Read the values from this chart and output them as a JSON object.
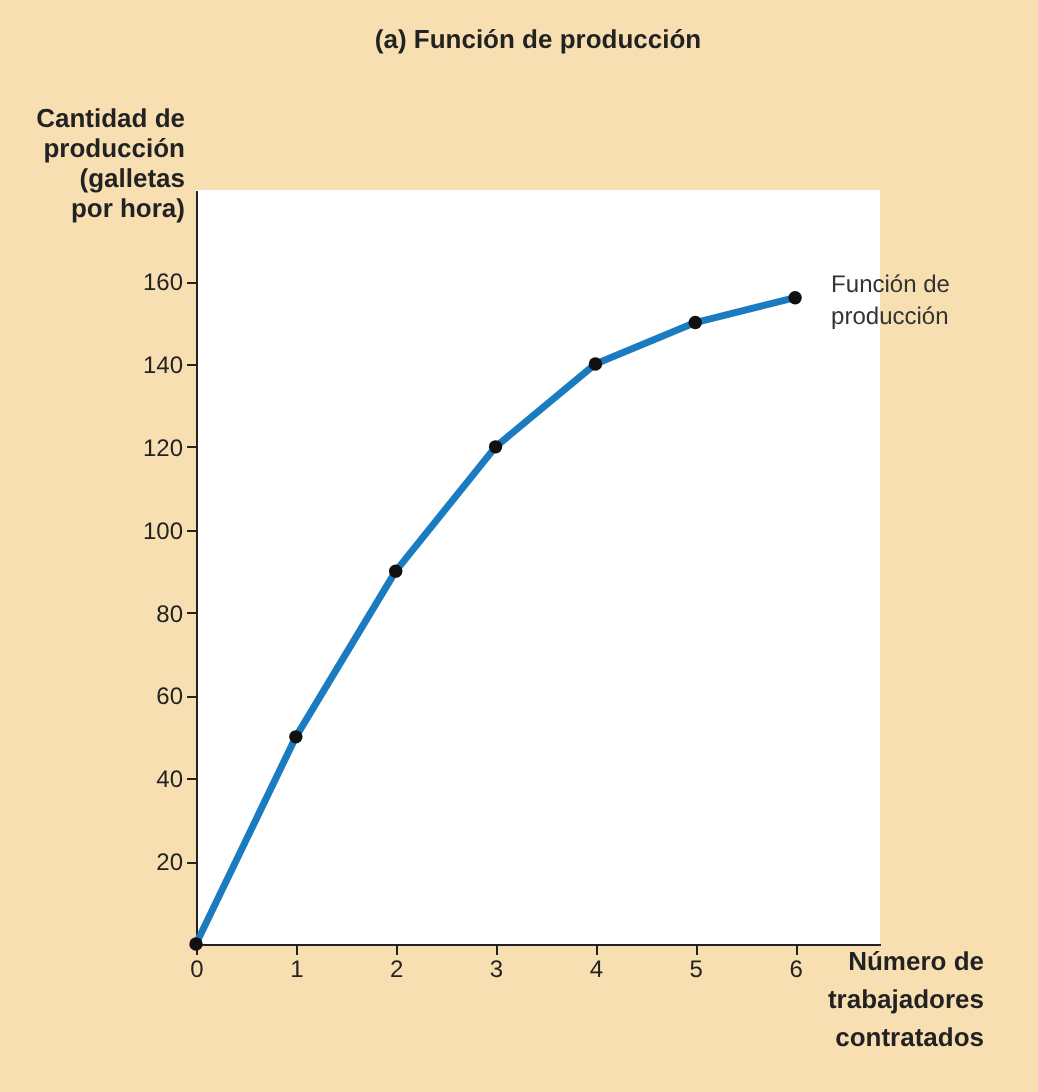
{
  "chart_data": {
    "type": "line",
    "title": "(a) Función de producción",
    "xlabel": "Número de trabajadores contratados",
    "ylabel": "Cantidad de producción (galletas por hora)",
    "x": [
      0,
      1,
      2,
      3,
      4,
      5,
      6
    ],
    "series": [
      {
        "name": "Función de producción",
        "color": "#1b7bc0",
        "values": [
          0,
          50,
          90,
          120,
          140,
          150,
          156
        ]
      }
    ],
    "xlim": [
      0,
      6.85
    ],
    "xticks": [
      0,
      1,
      2,
      3,
      4,
      5,
      6
    ],
    "ylim": [
      0,
      182
    ],
    "yticks": [
      20,
      40,
      60,
      80,
      100,
      120,
      140,
      160
    ],
    "marker": "circle",
    "line_style": "solid",
    "grid": false
  }
}
